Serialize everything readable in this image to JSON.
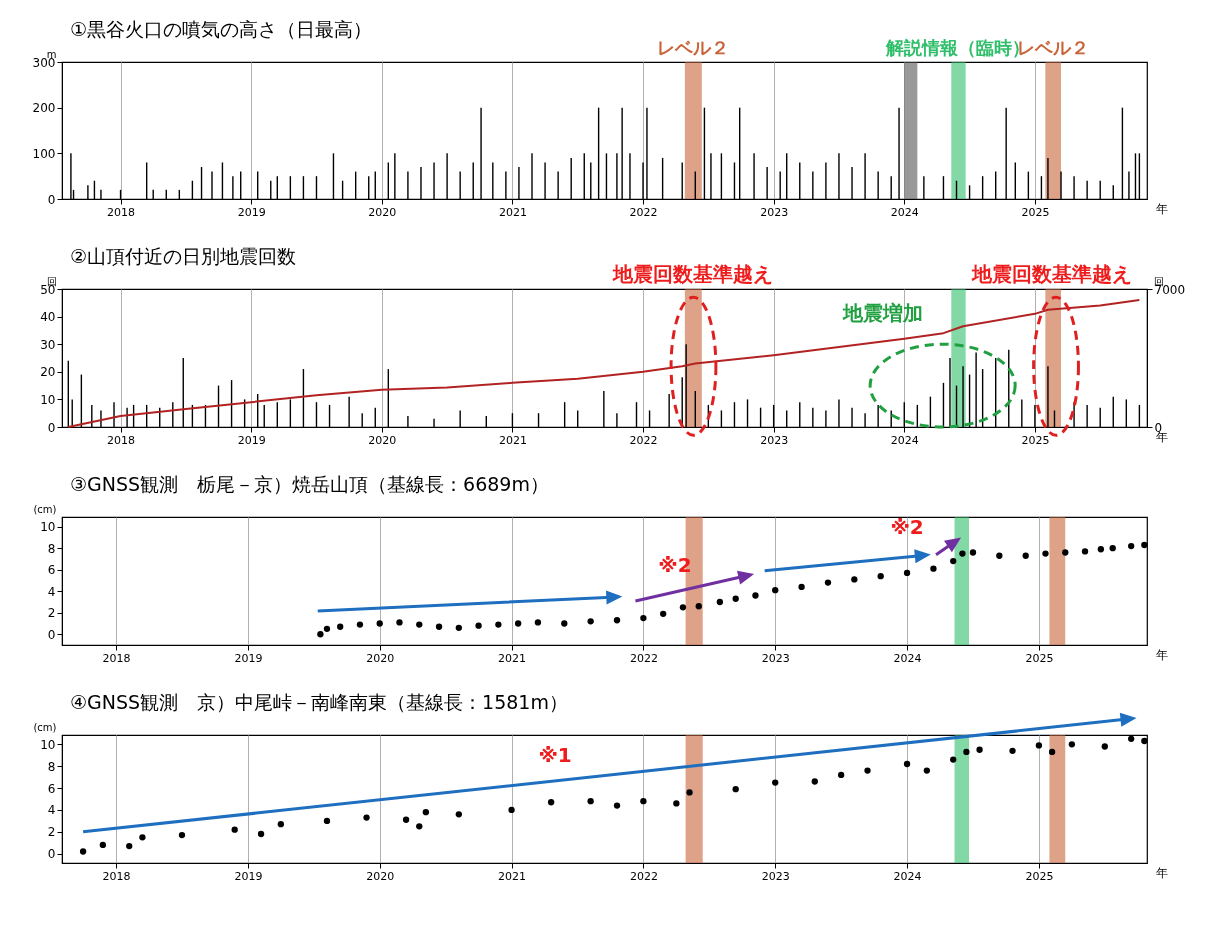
{
  "chart_data": [
    {
      "type": "bar",
      "title": "①黒谷火口の噴気の高さ（日最高）",
      "ylabel": "m",
      "xlabel": "年",
      "xlim": [
        2017.59,
        2025.82
      ],
      "xticks": [
        2018,
        2019,
        2020,
        2021,
        2022,
        2023,
        2024,
        2025
      ],
      "ylim": [
        0,
        300
      ],
      "yticks": [
        0,
        100,
        200,
        300
      ],
      "grid": "x",
      "series": [
        {
          "color": "#000000",
          "x": [
            2017.62,
            2017.64,
            2017.75,
            2017.8,
            2017.85,
            2018.0,
            2018.2,
            2018.25,
            2018.35,
            2018.45,
            2018.55,
            2018.62,
            2018.7,
            2018.78,
            2018.86,
            2018.92,
            2019.05,
            2019.15,
            2019.2,
            2019.3,
            2019.4,
            2019.5,
            2019.63,
            2019.7,
            2019.8,
            2019.9,
            2019.95,
            2020.05,
            2020.1,
            2020.2,
            2020.3,
            2020.4,
            2020.5,
            2020.6,
            2020.7,
            2020.76,
            2020.85,
            2020.95,
            2021.05,
            2021.15,
            2021.25,
            2021.35,
            2021.45,
            2021.55,
            2021.6,
            2021.66,
            2021.72,
            2021.8,
            2021.84,
            2021.9,
            2022.0,
            2022.03,
            2022.15,
            2022.3,
            2022.4,
            2022.47,
            2022.52,
            2022.6,
            2022.7,
            2022.74,
            2022.85,
            2022.95,
            2023.05,
            2023.1,
            2023.2,
            2023.3,
            2023.4,
            2023.5,
            2023.6,
            2023.7,
            2023.8,
            2023.9,
            2023.96,
            2024.15,
            2024.3,
            2024.4,
            2024.5,
            2024.6,
            2024.7,
            2024.78,
            2024.85,
            2024.95,
            2025.05,
            2025.1,
            2025.2,
            2025.3,
            2025.4,
            2025.5,
            2025.6,
            2025.67,
            2025.72,
            2025.77,
            2025.8
          ],
          "values": [
            100,
            20,
            30,
            40,
            20,
            20,
            80,
            20,
            20,
            20,
            40,
            70,
            60,
            80,
            50,
            60,
            60,
            40,
            50,
            50,
            50,
            50,
            100,
            40,
            60,
            50,
            60,
            80,
            100,
            60,
            70,
            80,
            100,
            60,
            80,
            200,
            80,
            60,
            70,
            100,
            80,
            60,
            90,
            100,
            80,
            200,
            100,
            100,
            200,
            100,
            80,
            200,
            90,
            80,
            60,
            200,
            100,
            100,
            80,
            200,
            100,
            70,
            60,
            100,
            80,
            60,
            80,
            100,
            70,
            100,
            60,
            50,
            200,
            50,
            50,
            40,
            30,
            50,
            60,
            200,
            80,
            60,
            50,
            90,
            60,
            50,
            40,
            40,
            30,
            200,
            60,
            100,
            100
          ]
        }
      ],
      "bands": [
        {
          "axis": "x",
          "from": 2022.32,
          "to": 2022.45,
          "label": "レベル２",
          "color": "#c8643a"
        },
        {
          "axis": "x",
          "from": 2024.0,
          "to": 2024.1,
          "color": "#555555"
        },
        {
          "axis": "x",
          "from": 2024.36,
          "to": 2024.47,
          "label": "解説情報（臨時）",
          "color": "#2fbf6a"
        },
        {
          "axis": "x",
          "from": 2025.08,
          "to": 2025.2,
          "label": "レベル２",
          "color": "#c8643a"
        }
      ]
    },
    {
      "type": "bar",
      "title": "②山頂付近の日別地震回数",
      "ylabel": "回",
      "y2label": "回",
      "xlabel": "年",
      "xlim": [
        2017.59,
        2025.82
      ],
      "xticks": [
        2018,
        2019,
        2020,
        2021,
        2022,
        2023,
        2024,
        2025
      ],
      "ylim": [
        0,
        50
      ],
      "yticks": [
        0,
        10,
        20,
        30,
        40,
        50
      ],
      "y2lim": [
        0,
        7000
      ],
      "y2ticks": [
        0,
        7000
      ],
      "grid": "x",
      "series": [
        {
          "color": "#000000",
          "x": [
            2017.6,
            2017.63,
            2017.7,
            2017.78,
            2017.85,
            2017.95,
            2018.05,
            2018.1,
            2018.2,
            2018.3,
            2018.4,
            2018.48,
            2018.55,
            2018.65,
            2018.75,
            2018.85,
            2018.95,
            2019.05,
            2019.1,
            2019.2,
            2019.3,
            2019.4,
            2019.5,
            2019.6,
            2019.75,
            2019.85,
            2019.95,
            2020.05,
            2020.2,
            2020.4,
            2020.6,
            2020.8,
            2021.0,
            2021.2,
            2021.4,
            2021.5,
            2021.7,
            2021.8,
            2021.95,
            2022.05,
            2022.2,
            2022.3,
            2022.33,
            2022.4,
            2022.5,
            2022.6,
            2022.7,
            2022.8,
            2022.9,
            2023.0,
            2023.1,
            2023.2,
            2023.3,
            2023.4,
            2023.5,
            2023.6,
            2023.7,
            2023.8,
            2023.9,
            2024.0,
            2024.1,
            2024.2,
            2024.3,
            2024.35,
            2024.4,
            2024.45,
            2024.5,
            2024.55,
            2024.6,
            2024.7,
            2024.8,
            2024.9,
            2025.0,
            2025.1,
            2025.15,
            2025.3,
            2025.4,
            2025.5,
            2025.6,
            2025.7,
            2025.8
          ],
          "values": [
            24,
            10,
            19,
            8,
            6,
            9,
            7,
            8,
            8,
            7,
            9,
            25,
            8,
            8,
            15,
            17,
            10,
            12,
            8,
            9,
            10,
            21,
            9,
            8,
            11,
            5,
            7,
            21,
            4,
            3,
            6,
            4,
            5,
            5,
            9,
            6,
            13,
            5,
            9,
            6,
            12,
            18,
            30,
            13,
            8,
            6,
            9,
            10,
            7,
            8,
            6,
            9,
            7,
            6,
            10,
            7,
            5,
            8,
            6,
            9,
            8,
            11,
            16,
            25,
            15,
            22,
            19,
            27,
            21,
            25,
            28,
            10,
            8,
            22,
            6,
            9,
            8,
            7,
            11,
            10,
            8
          ]
        },
        {
          "type": "line",
          "axis": "y2",
          "color": "#b22222",
          "x": [
            2017.6,
            2018,
            2018.5,
            2019,
            2019.5,
            2020,
            2020.5,
            2021,
            2021.5,
            2022,
            2022.3,
            2022.4,
            2023,
            2023.5,
            2024,
            2024.3,
            2024.45,
            2025,
            2025.1,
            2025.5,
            2025.8
          ],
          "values": [
            0,
            560,
            910,
            1260,
            1610,
            1890,
            2000,
            2240,
            2450,
            2800,
            3080,
            3220,
            3640,
            4060,
            4480,
            4760,
            5110,
            5740,
            5950,
            6160,
            6440
          ]
        }
      ],
      "bands": [
        {
          "axis": "x",
          "from": 2022.32,
          "to": 2022.45,
          "color": "#c8643a"
        },
        {
          "axis": "x",
          "from": 2024.36,
          "to": 2024.47,
          "color": "#2fbf6a"
        },
        {
          "axis": "x",
          "from": 2025.08,
          "to": 2025.2,
          "color": "#c8643a"
        }
      ],
      "annotations": [
        "地震回数基準越え",
        "地震増加",
        "地震回数基準越え"
      ]
    },
    {
      "type": "scatter",
      "title": "③GNSS観測　栃尾－京）焼岳山頂（基線長：6689m）",
      "ylabel": "(cm)",
      "xlabel": "年",
      "xlim": [
        2017.59,
        2025.82
      ],
      "xticks": [
        2018,
        2019,
        2020,
        2021,
        2022,
        2023,
        2024,
        2025
      ],
      "ylim": [
        -1,
        10.9
      ],
      "yticks": [
        0,
        2,
        4,
        6,
        8,
        10
      ],
      "grid": "x",
      "marker": "circle",
      "series": [
        {
          "color": "#000000",
          "x": [
            2019.55,
            2019.6,
            2019.7,
            2019.85,
            2020.0,
            2020.15,
            2020.3,
            2020.45,
            2020.6,
            2020.75,
            2020.9,
            2021.05,
            2021.2,
            2021.4,
            2021.6,
            2021.8,
            2022.0,
            2022.15,
            2022.3,
            2022.42,
            2022.58,
            2022.7,
            2022.85,
            2023.0,
            2023.2,
            2023.4,
            2023.6,
            2023.8,
            2024.0,
            2024.2,
            2024.35,
            2024.42,
            2024.5,
            2024.7,
            2024.9,
            2025.05,
            2025.2,
            2025.35,
            2025.47,
            2025.56,
            2025.7,
            2025.8
          ],
          "values": [
            0.0,
            0.5,
            0.7,
            0.9,
            1.0,
            1.1,
            0.9,
            0.7,
            0.6,
            0.8,
            0.9,
            1.0,
            1.1,
            1.0,
            1.2,
            1.3,
            1.5,
            1.9,
            2.5,
            2.6,
            3.0,
            3.3,
            3.6,
            4.1,
            4.4,
            4.8,
            5.1,
            5.4,
            5.7,
            6.1,
            6.8,
            7.5,
            7.6,
            7.3,
            7.3,
            7.5,
            7.6,
            7.7,
            7.9,
            8.0,
            8.2,
            8.3
          ]
        }
      ],
      "bands": [
        {
          "axis": "x",
          "from": 2022.32,
          "to": 2022.45,
          "color": "#c8643a"
        },
        {
          "axis": "x",
          "from": 2024.36,
          "to": 2024.47,
          "color": "#2fbf6a"
        },
        {
          "axis": "x",
          "from": 2025.08,
          "to": 2025.2,
          "color": "#c8643a"
        }
      ],
      "annotations": [
        "※2",
        "※2"
      ]
    },
    {
      "type": "scatter",
      "title": "④GNSS観測　京）中尾峠－南峰南東（基線長：1581m）",
      "ylabel": "(cm)",
      "xlabel": "年",
      "xlim": [
        2017.59,
        2025.82
      ],
      "xticks": [
        2018,
        2019,
        2020,
        2021,
        2022,
        2023,
        2024,
        2025
      ],
      "ylim": [
        -0.85,
        10.85
      ],
      "yticks": [
        0,
        2,
        4,
        6,
        8,
        10
      ],
      "grid": "x",
      "marker": "circle",
      "series": [
        {
          "color": "#000000",
          "x": [
            2017.75,
            2017.9,
            2018.1,
            2018.2,
            2018.5,
            2018.9,
            2019.1,
            2019.25,
            2019.6,
            2019.9,
            2020.2,
            2020.3,
            2020.35,
            2020.6,
            2021.0,
            2021.3,
            2021.6,
            2021.8,
            2022.0,
            2022.25,
            2022.35,
            2022.7,
            2023.0,
            2023.3,
            2023.5,
            2023.7,
            2024.0,
            2024.15,
            2024.35,
            2024.45,
            2024.55,
            2024.8,
            2025.0,
            2025.1,
            2025.25,
            2025.5,
            2025.7,
            2025.8
          ],
          "values": [
            0.2,
            0.8,
            0.7,
            1.5,
            1.7,
            2.2,
            1.8,
            2.7,
            3.0,
            3.3,
            3.1,
            2.5,
            3.8,
            3.6,
            4.0,
            4.7,
            4.8,
            4.4,
            4.8,
            4.6,
            5.6,
            5.9,
            6.5,
            6.6,
            7.2,
            7.6,
            8.2,
            7.6,
            8.6,
            9.3,
            9.5,
            9.4,
            9.9,
            9.3,
            10.0,
            9.8,
            10.5,
            10.3
          ]
        }
      ],
      "bands": [
        {
          "axis": "x",
          "from": 2022.32,
          "to": 2022.45,
          "color": "#c8643a"
        },
        {
          "axis": "x",
          "from": 2024.36,
          "to": 2024.47,
          "color": "#2fbf6a"
        },
        {
          "axis": "x",
          "from": 2025.08,
          "to": 2025.2,
          "color": "#c8643a"
        }
      ],
      "annotations": [
        "※1"
      ]
    }
  ]
}
